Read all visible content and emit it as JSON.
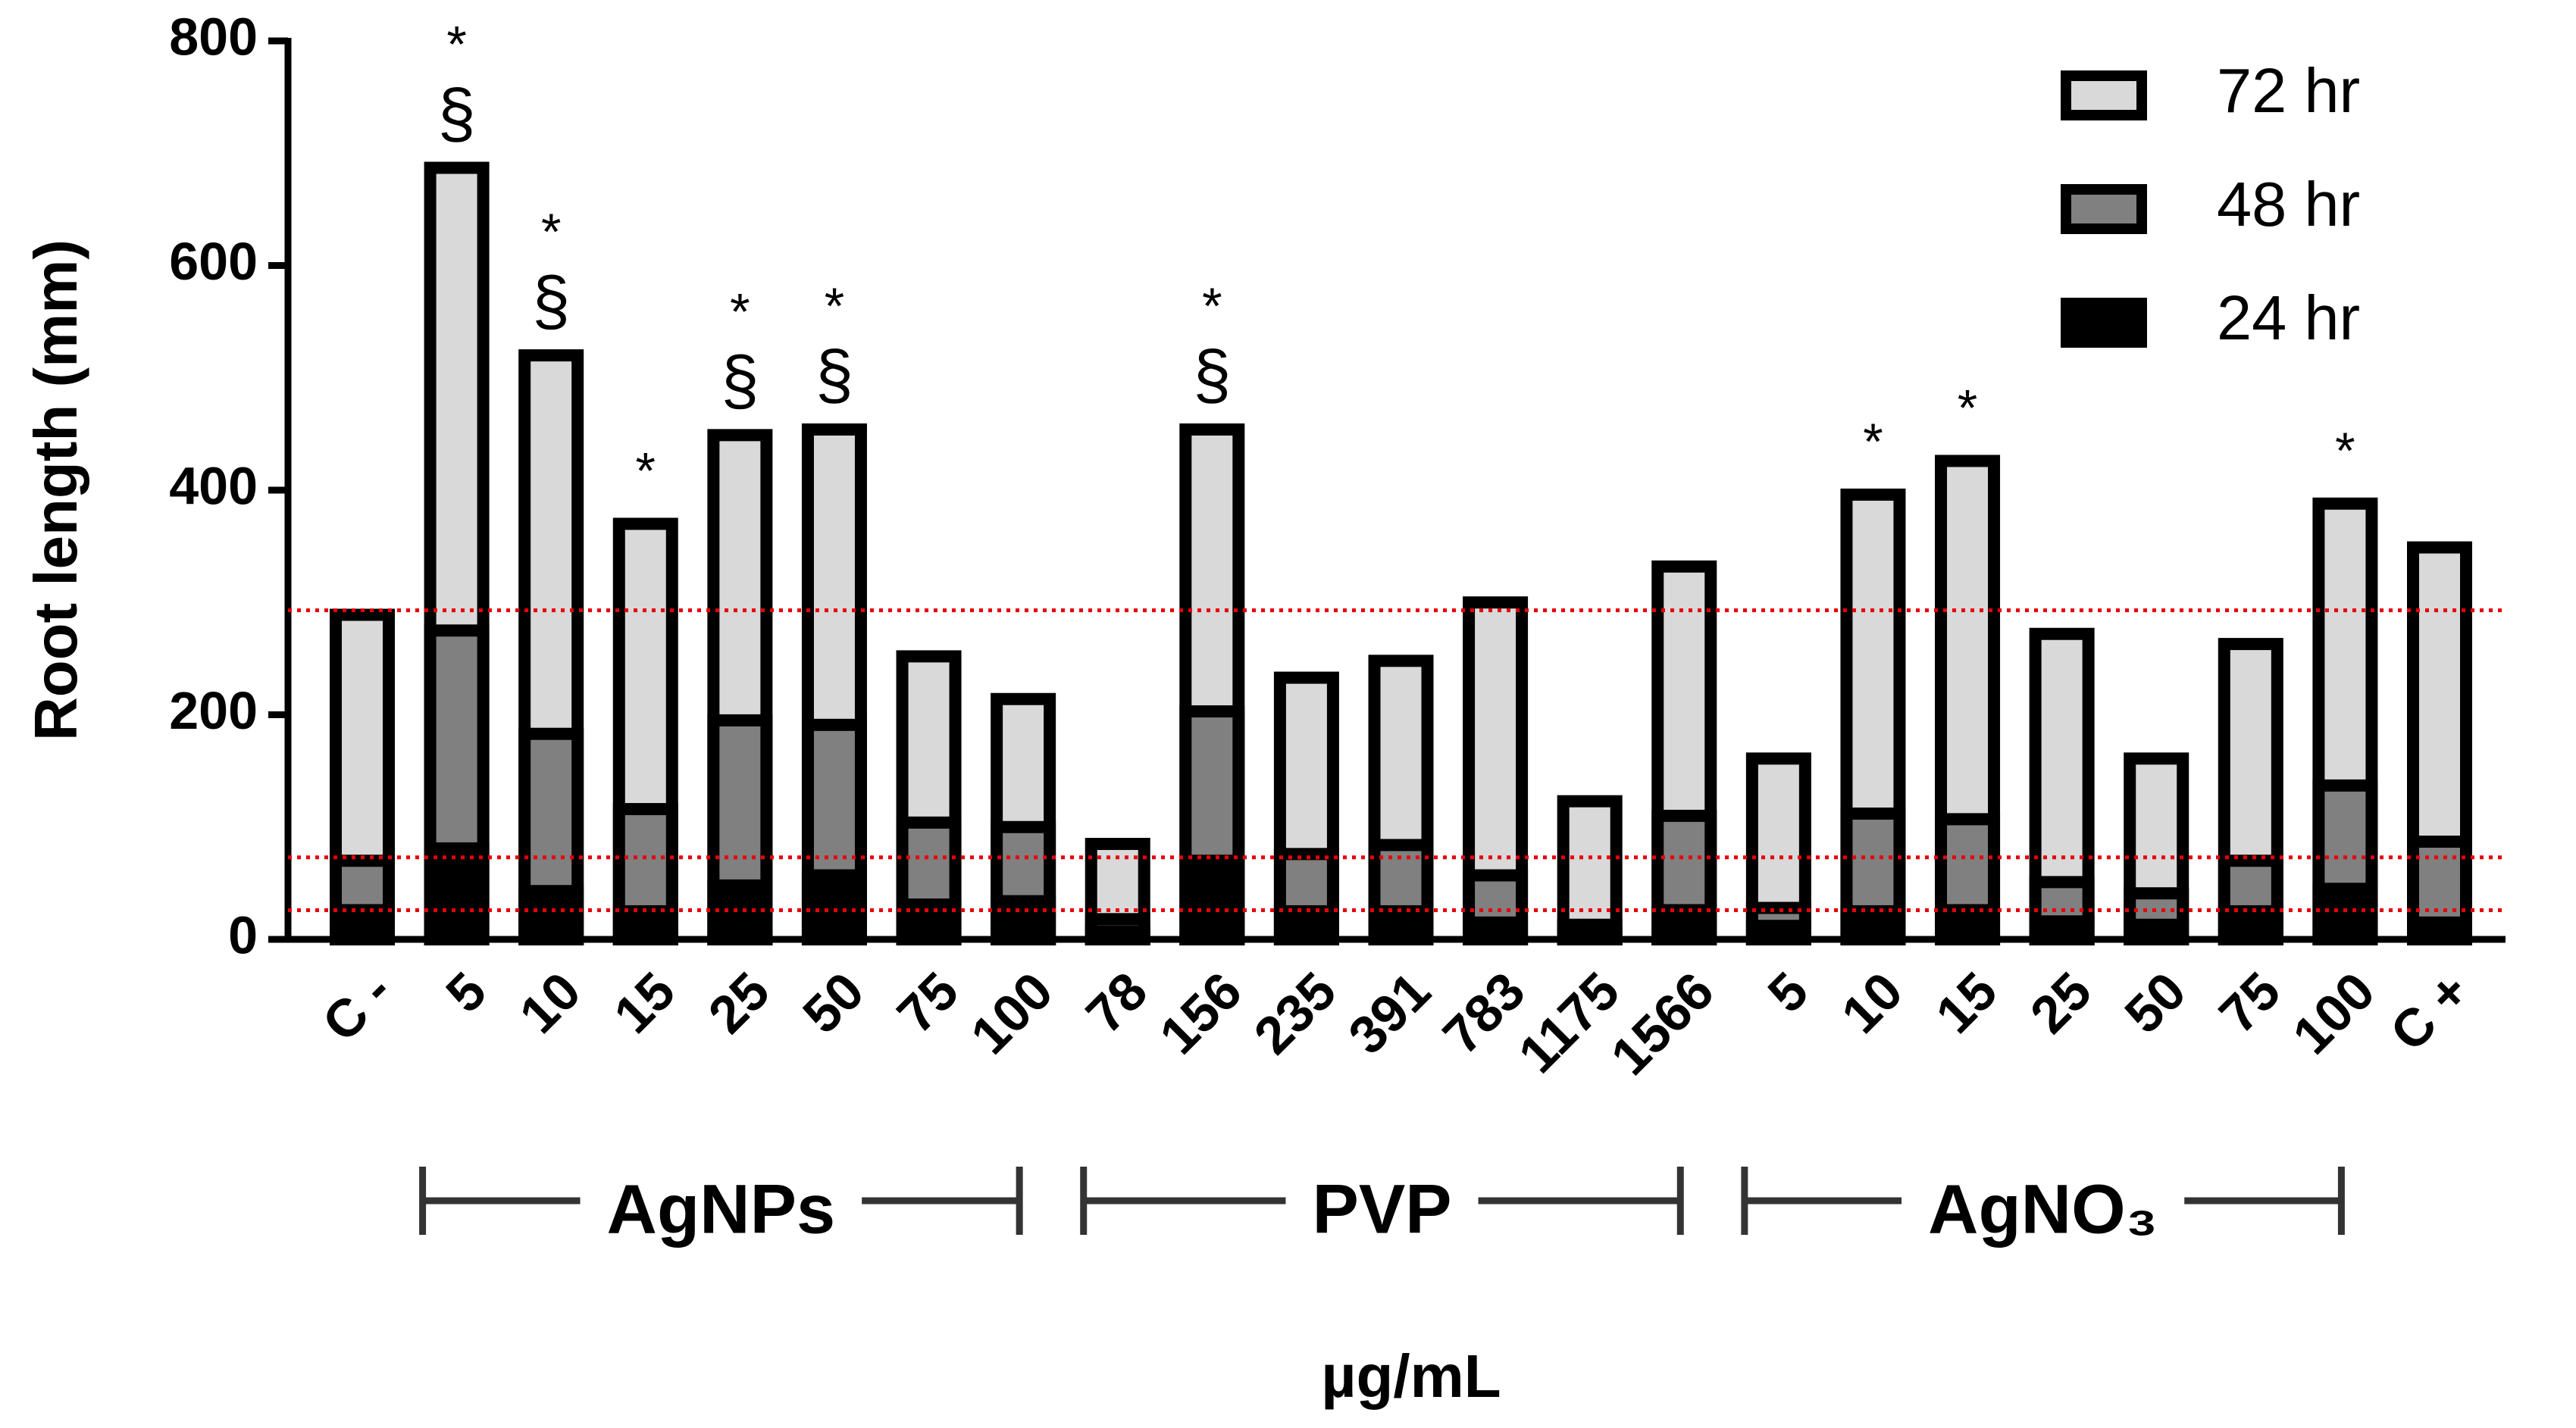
{
  "chart_data": {
    "type": "bar",
    "y_label": "Root length (mm)",
    "x_label": "µg/mL",
    "categories": [
      "C -",
      "5",
      "10",
      "15",
      "25",
      "50",
      "75",
      "100",
      "78",
      "156",
      "235",
      "391",
      "783",
      "1175",
      "1566",
      "5",
      "10",
      "15",
      "25",
      "50",
      "75",
      "100",
      "C +"
    ],
    "series": [
      {
        "name": "72 hr",
        "color": "#d9d9d9",
        "values": [
          289,
          687,
          520,
          370,
          449,
          454,
          252,
          214,
          85,
          454,
          233,
          248,
          300,
          123,
          332,
          161,
          396,
          426,
          272,
          161,
          263,
          388,
          349
        ]
      },
      {
        "name": "48 hr",
        "color": "#808080",
        "values": [
          70,
          275,
          183,
          116,
          195,
          191,
          104,
          100,
          18,
          203,
          76,
          84,
          57,
          13,
          110,
          28,
          112,
          107,
          51,
          41,
          70,
          137,
          87
        ]
      },
      {
        "name": "24 hr",
        "color": "#000000",
        "values": [
          26,
          81,
          43,
          25,
          48,
          57,
          31,
          34,
          7,
          70,
          25,
          25,
          15,
          6,
          26,
          12,
          25,
          26,
          16,
          13,
          25,
          45,
          15
        ]
      }
    ],
    "significance": [
      null,
      "*",
      "*",
      "*",
      "*",
      "*",
      null,
      null,
      null,
      "*",
      null,
      null,
      null,
      null,
      null,
      null,
      "*",
      "*",
      null,
      null,
      null,
      "*",
      null
    ],
    "section_marks": [
      null,
      "§",
      "§",
      null,
      "§",
      "§",
      null,
      null,
      null,
      "§",
      null,
      null,
      null,
      null,
      null,
      null,
      null,
      null,
      null,
      null,
      null,
      null,
      null
    ],
    "groups": [
      {
        "label": "AgNPs",
        "from": 1,
        "to": 7
      },
      {
        "label": "PVP",
        "from": 8,
        "to": 14
      },
      {
        "label": "AgNO₃",
        "from": 15,
        "to": 21
      }
    ],
    "reference_lines": {
      "color": "#e8000b",
      "values": [
        293,
        73,
        26
      ]
    },
    "ylim": [
      0,
      800
    ],
    "yticks": [
      0,
      200,
      400,
      600,
      800
    ],
    "legend": "top-right"
  }
}
